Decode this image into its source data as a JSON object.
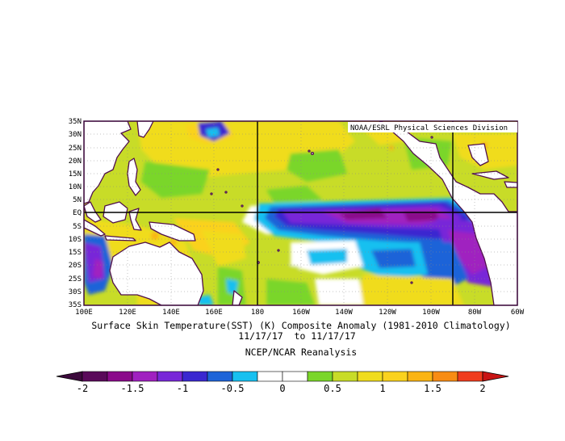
{
  "map": {
    "credit": "NOAA/ESRL Physical Sciences Division",
    "lat_labels": [
      "35N",
      "30N",
      "25N",
      "20N",
      "15N",
      "10N",
      "5N",
      "EQ",
      "5S",
      "10S",
      "15S",
      "20S",
      "25S",
      "30S",
      "35S"
    ],
    "lon_labels": [
      "100E",
      "120E",
      "140E",
      "160E",
      "180",
      "160W",
      "140W",
      "120W",
      "100W",
      "80W",
      "60W"
    ],
    "reference_lines": {
      "equator": "EQ",
      "dateline": "180",
      "meridian": "90W"
    }
  },
  "caption": {
    "line1": "Surface Skin Temperature(SST) (K) Composite Anomaly (1981-2010 Climatology)",
    "line2": "11/17/17  to 11/17/17",
    "line3": "NCEP/NCAR Reanalysis"
  },
  "colorbar": {
    "labels": [
      "-2",
      "-1.5",
      "-1",
      "-0.5",
      "0",
      "0.5",
      "1",
      "1.5",
      "2"
    ],
    "colors": [
      "#5a0a5a",
      "#8a0a8a",
      "#a020c0",
      "#7828d8",
      "#3a28d0",
      "#1e64d8",
      "#18c0f0",
      "#ffffff",
      "#ffffff",
      "#7ad62a",
      "#c8dc28",
      "#f0dc1e",
      "#fad21e",
      "#fab414",
      "#f88c14",
      "#f03c1e"
    ],
    "under_color": "#3c0a3c",
    "over_color": "#c81414"
  },
  "colors": {
    "frame": "#3c0a3c",
    "coastline": "#50104c",
    "land_fill": "#ffffff"
  }
}
